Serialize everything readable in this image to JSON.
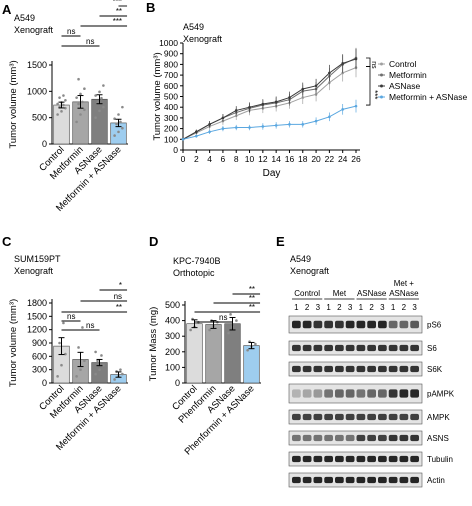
{
  "panels": {
    "A": {
      "letter": "A",
      "title_lines": [
        "A549",
        "Xenograft"
      ],
      "ylabel": "Tumor volume (mm³)",
      "yticks": [
        0,
        500,
        1000,
        1500
      ],
      "sig": [
        "***",
        "**",
        "***",
        "ns",
        "ns"
      ]
    },
    "B": {
      "letter": "B",
      "title_lines": [
        "A549",
        "Xenograft"
      ],
      "ylabel": "Tumor volume (mm³)",
      "xlabel": "Day",
      "xticks": [
        0,
        2,
        4,
        6,
        8,
        10,
        12,
        14,
        16,
        18,
        20,
        22,
        24,
        26
      ],
      "yticks": [
        0,
        100,
        200,
        300,
        400,
        500,
        600,
        700,
        800,
        900,
        1000
      ],
      "legend": [
        "Control",
        "Metformin",
        "ASNase",
        "Metformin + ASNase"
      ],
      "sig": [
        "ns",
        "***"
      ]
    },
    "C": {
      "letter": "C",
      "title_lines": [
        "SUM159PT",
        "Xenograft"
      ],
      "ylabel": "Tumor volume (mm³)",
      "yticks": [
        0,
        300,
        600,
        900,
        1200,
        1500,
        1800
      ],
      "sig": [
        "*",
        "ns",
        "**",
        "ns",
        "ns"
      ]
    },
    "D": {
      "letter": "D",
      "title_lines": [
        "KPC-7940B",
        "Orthotopic"
      ],
      "ylabel": "Tumor Mass (mg)",
      "yticks": [
        0,
        100,
        200,
        300,
        400,
        500
      ],
      "sig": [
        "**",
        "**",
        "**",
        "ns"
      ]
    },
    "E": {
      "letter": "E",
      "title_lines": [
        "A549",
        "Xenograft"
      ],
      "groups": [
        "Control",
        "Met",
        "ASNase",
        "Met +",
        "ASNase"
      ],
      "lanes": [
        "1",
        "2",
        "3",
        "1",
        "2",
        "3",
        "1",
        "2",
        "3",
        "1",
        "2",
        "3"
      ],
      "blots": [
        "pS6",
        "S6",
        "S6K",
        "pAMPK",
        "AMPK",
        "ASNS",
        "Tubulin",
        "Actin"
      ]
    }
  },
  "colors": {
    "control": "#dcdcdc",
    "metformin": "#a6a6a6",
    "asnase": "#7f7f7f",
    "combo": "#9ecdef",
    "points": "#8a8a8a"
  },
  "chart_data": [
    {
      "type": "bar",
      "panel": "A",
      "categories": [
        "Control",
        "Metformin",
        "ASNase",
        "Metformin + ASNase"
      ],
      "values": [
        740,
        800,
        850,
        400
      ],
      "errors": [
        55,
        120,
        85,
        70
      ],
      "points": [
        [
          560,
          620,
          680,
          700,
          740,
          760,
          790,
          830,
          880,
          920
        ],
        [
          420,
          560,
          650,
          760,
          800,
          880,
          950,
          1050,
          1230
        ],
        [
          500,
          630,
          700,
          790,
          870,
          920,
          990,
          1110
        ],
        [
          160,
          230,
          300,
          380,
          420,
          480,
          560,
          700
        ]
      ],
      "ylabel": "Tumor volume (mm³)",
      "ylim": [
        0,
        1500
      ]
    },
    {
      "type": "line",
      "panel": "B",
      "x": [
        0,
        2,
        4,
        6,
        8,
        10,
        12,
        14,
        16,
        18,
        20,
        22,
        24,
        26
      ],
      "series": [
        {
          "name": "Control",
          "values": [
            100,
            160,
            220,
            270,
            320,
            370,
            390,
            410,
            440,
            490,
            520,
            630,
            720,
            770
          ],
          "errors": [
            10,
            20,
            30,
            35,
            40,
            45,
            45,
            50,
            55,
            60,
            65,
            70,
            80,
            90
          ]
        },
        {
          "name": "Metformin",
          "values": [
            100,
            170,
            240,
            300,
            350,
            390,
            420,
            440,
            470,
            550,
            570,
            690,
            800,
            860
          ],
          "errors": [
            10,
            20,
            30,
            35,
            40,
            45,
            45,
            50,
            55,
            60,
            65,
            75,
            85,
            95
          ]
        },
        {
          "name": "ASNase",
          "values": [
            100,
            170,
            240,
            300,
            370,
            400,
            430,
            450,
            490,
            570,
            600,
            720,
            810,
            850
          ],
          "errors": [
            10,
            20,
            30,
            35,
            40,
            45,
            45,
            50,
            55,
            60,
            65,
            75,
            85,
            95
          ]
        },
        {
          "name": "Metformin + ASNase",
          "values": [
            100,
            130,
            170,
            200,
            210,
            210,
            220,
            230,
            240,
            240,
            270,
            310,
            380,
            410
          ],
          "errors": [
            10,
            15,
            20,
            25,
            25,
            25,
            30,
            30,
            30,
            30,
            35,
            40,
            50,
            60
          ]
        }
      ],
      "xlabel": "Day",
      "ylabel": "Tumor volume (mm³)",
      "ylim": [
        0,
        1000
      ]
    },
    {
      "type": "bar",
      "panel": "C",
      "categories": [
        "Control",
        "Metformin",
        "ASNase",
        "Metformin + ASNase"
      ],
      "values": [
        830,
        530,
        460,
        190
      ],
      "errors": [
        190,
        160,
        70,
        60
      ],
      "points": [
        [
          150,
          400,
          650,
          900,
          1350
        ],
        [
          150,
          300,
          500,
          800,
          1250
        ],
        [
          200,
          300,
          400,
          500,
          620,
          700
        ],
        [
          80,
          150,
          200,
          260,
          300
        ]
      ],
      "ylabel": "Tumor volume (mm³)",
      "ylim": [
        0,
        1800
      ]
    },
    {
      "type": "bar",
      "panel": "D",
      "categories": [
        "Control",
        "Phenformin",
        "ASNase",
        "Phenformin + ASNase"
      ],
      "values": [
        380,
        375,
        380,
        240
      ],
      "errors": [
        25,
        25,
        40,
        20
      ],
      "points": [
        [
          340,
          360,
          390,
          410
        ],
        [
          340,
          365,
          390,
          400
        ],
        [
          320,
          360,
          400,
          440
        ],
        [
          210,
          235,
          250,
          265
        ]
      ],
      "ylabel": "Tumor Mass (mg)",
      "ylim": [
        0,
        500
      ]
    }
  ]
}
